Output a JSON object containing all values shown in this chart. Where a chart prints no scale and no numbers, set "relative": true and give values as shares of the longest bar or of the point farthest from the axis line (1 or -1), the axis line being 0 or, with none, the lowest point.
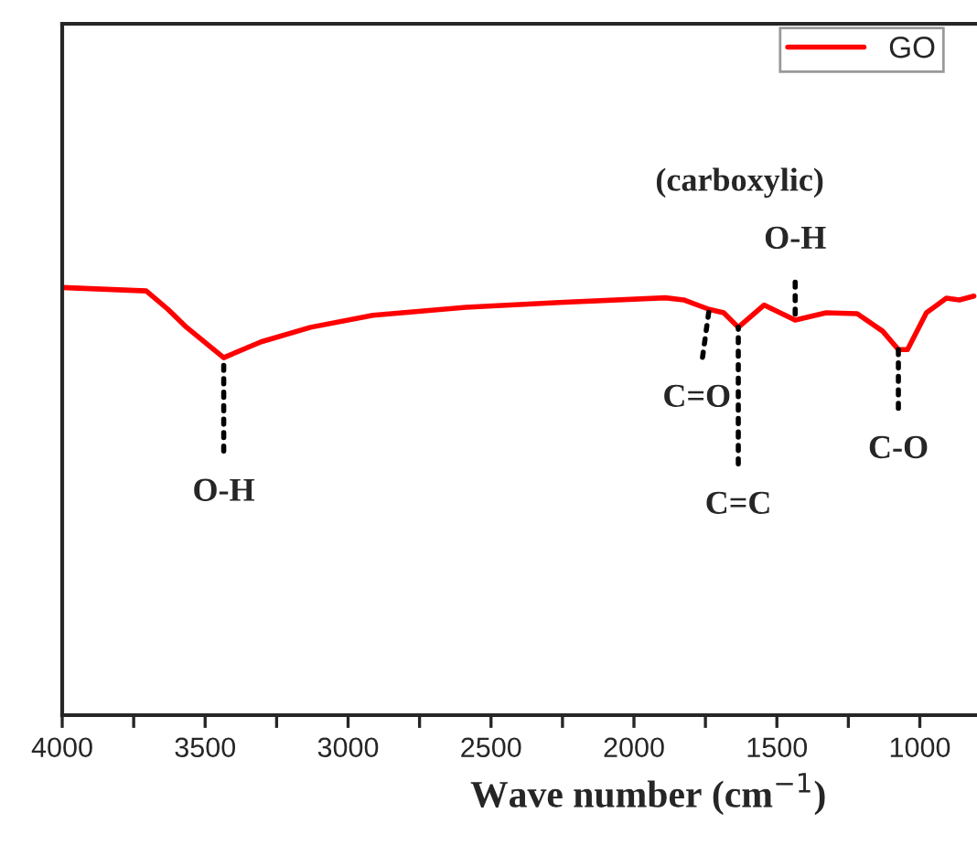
{
  "chart_data": {
    "type": "line",
    "relative": true,
    "xlabel": "Wave number (cm$^{−1}$)",
    "x": [
      4000,
      3706,
      3630,
      3565,
      3435,
      3304,
      3131,
      2913,
      2587,
      2261,
      1890,
      1826,
      1737,
      1686,
      1635,
      1545,
      1436,
      1328,
      1219,
      1130,
      1075,
      1043,
      977,
      907,
      862,
      811
    ],
    "series": [
      {
        "name": "GO",
        "color": "#ff0000",
        "values": [
          1.0,
          0.992,
          0.949,
          0.907,
          0.836,
          0.873,
          0.907,
          0.935,
          0.954,
          0.965,
          0.976,
          0.971,
          0.949,
          0.941,
          0.907,
          0.959,
          0.924,
          0.941,
          0.939,
          0.898,
          0.855,
          0.855,
          0.941,
          0.975,
          0.971,
          0.98
        ]
      }
    ],
    "xlim": [
      4000,
      800
    ],
    "xticks": [
      4000,
      {
        "value": 3750,
        "label": null
      },
      3500,
      {
        "value": 3250,
        "label": null
      },
      3000,
      {
        "value": 2750,
        "label": null
      },
      2500,
      {
        "value": 2250,
        "label": null
      },
      2000,
      {
        "value": 1750,
        "label": null
      },
      1500,
      {
        "value": 1250,
        "label": null
      },
      1000
    ],
    "annotations": [
      {
        "text": "O-H",
        "x": 3435,
        "y": 0.836
      },
      {
        "text": "C=O",
        "x": 1737,
        "y": 0.949
      },
      {
        "text": "C=C",
        "x": 1635,
        "y": 0.907
      },
      {
        "text": "O-H",
        "x": 1436,
        "y": 0.924
      },
      "(carboxylic)",
      {
        "text": "C-O",
        "x": 1075,
        "y": 0.855
      }
    ],
    "legend": "top right",
    "grid": false,
    "line_style": "solid",
    "marker": "none"
  }
}
